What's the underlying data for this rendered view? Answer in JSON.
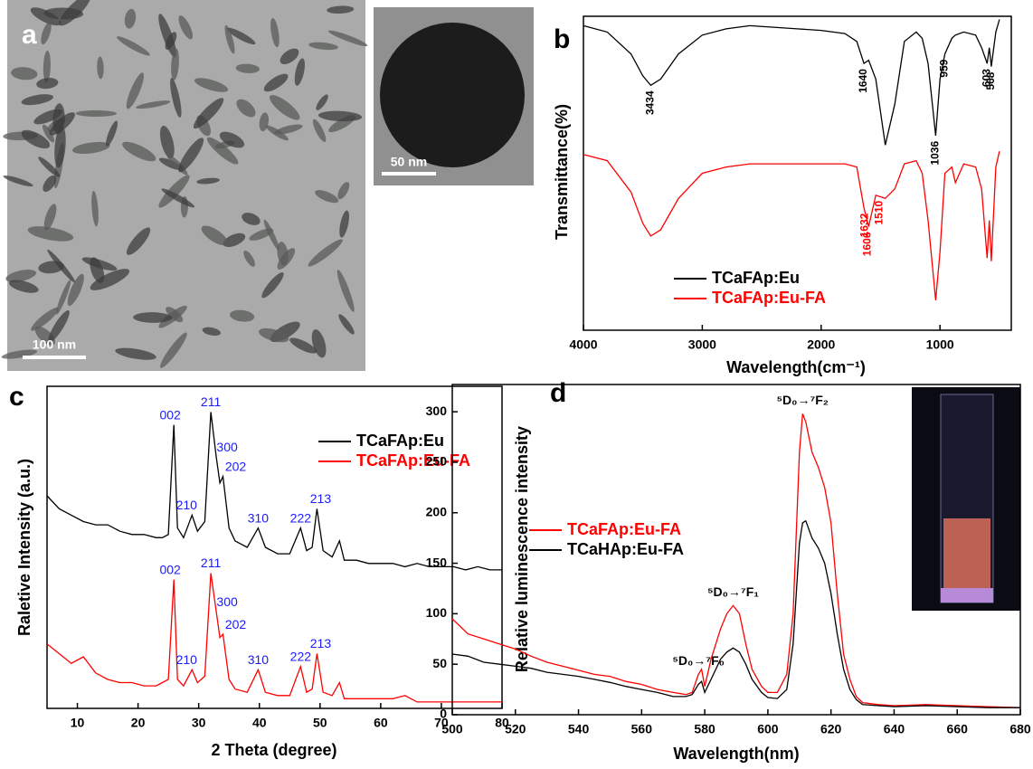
{
  "chart_data": [
    {
      "type": "image",
      "label": "a",
      "scale_bar": "100 nm",
      "inset_scale_bar": "50 nm"
    },
    {
      "type": "line",
      "label": "b",
      "x_label": "Wavelength(cm⁻¹)",
      "y_label": "Transmittance(%)",
      "xlim": [
        4000,
        400
      ],
      "xticks": [
        4000,
        3000,
        2000,
        1000
      ],
      "ylim": [
        0,
        100
      ],
      "x": [
        4000,
        3800,
        3600,
        3500,
        3434,
        3350,
        3200,
        3000,
        2800,
        2600,
        2400,
        2200,
        2000,
        1800,
        1700,
        1640,
        1600,
        1540,
        1460,
        1380,
        1300,
        1200,
        1150,
        1100,
        1036,
        1000,
        959,
        900,
        870,
        800,
        700,
        650,
        603,
        585,
        568,
        530,
        500
      ],
      "series": [
        {
          "name": "TCaFAp:Eu",
          "color": "#000000",
          "peaks": [
            3434,
            1640,
            1036,
            959,
            603,
            568
          ],
          "values": [
            97,
            95,
            88,
            81,
            78,
            80,
            88,
            94,
            96,
            97,
            96.5,
            96,
            95.5,
            94.5,
            92,
            85,
            86,
            80,
            59,
            72,
            92,
            95,
            93,
            85,
            62,
            80,
            88,
            93,
            94,
            95,
            94,
            90,
            85,
            90,
            84,
            95,
            99
          ]
        },
        {
          "name": "TCaFAp:Eu-FA",
          "color": "#ff0000",
          "peaks": [
            1632,
            1606,
            1510
          ],
          "values": [
            56,
            54,
            44,
            34,
            30,
            32,
            42,
            50,
            52,
            53,
            53,
            53,
            53,
            53,
            52,
            39,
            33,
            43,
            42,
            45,
            53,
            54,
            50,
            35,
            9.5,
            25,
            50,
            52,
            47,
            53,
            52,
            45,
            23,
            35,
            22,
            52,
            57
          ]
        }
      ]
    },
    {
      "type": "line",
      "label": "c",
      "x_label": "2 Theta (degree)",
      "y_label": "Raletive Intensity (a.u.)",
      "xlim": [
        5,
        80
      ],
      "xticks": [
        10,
        20,
        30,
        40,
        50,
        60,
        70,
        80
      ],
      "ylim": [
        0,
        100
      ],
      "x": [
        5,
        7,
        9,
        11,
        13,
        15,
        17,
        19,
        21,
        23,
        24,
        25,
        25.9,
        26.5,
        27.5,
        28.9,
        29.8,
        31,
        32,
        32.9,
        33.5,
        34,
        35,
        36,
        38,
        39.8,
        41,
        43,
        45,
        46.8,
        47.8,
        48.7,
        49.5,
        50.5,
        52,
        53.2,
        54,
        56,
        58,
        60,
        62,
        64,
        66,
        68,
        70,
        72,
        74,
        76,
        78,
        80
      ],
      "series": [
        {
          "name": "TCaFAp:Eu",
          "color": "#000000",
          "peak_labels": [
            "002",
            "210",
            "211",
            "300",
            "202",
            "310",
            "222",
            "213"
          ],
          "peak_x": [
            25.9,
            28.9,
            32,
            32.9,
            34,
            39.8,
            46.8,
            49.5
          ],
          "values": [
            66,
            62,
            60,
            58,
            57,
            57,
            55,
            54,
            54,
            53,
            53,
            54,
            88,
            56,
            53,
            60,
            55,
            58,
            92,
            78,
            70,
            72,
            56,
            52,
            50,
            56,
            50,
            48,
            48,
            56,
            49,
            50,
            62,
            49,
            47,
            52,
            46,
            46,
            45,
            45,
            45,
            44,
            45,
            44,
            44,
            44,
            43,
            44,
            43,
            43
          ]
        },
        {
          "name": "TCaFAp:Eu-FA",
          "color": "#ff0000",
          "peak_labels": [
            "002",
            "210",
            "211",
            "300",
            "202",
            "310",
            "222",
            "213"
          ],
          "peak_x": [
            25.9,
            28.9,
            32,
            32.9,
            34,
            39.8,
            46.8,
            49.5
          ],
          "values": [
            20,
            17,
            14,
            16,
            11,
            9,
            8,
            8,
            7,
            7,
            8,
            9,
            40,
            9,
            7,
            12,
            8,
            10,
            42,
            30,
            22,
            23,
            9,
            6,
            5,
            12,
            5,
            4,
            4,
            13,
            5,
            6,
            17,
            5,
            4,
            8,
            3,
            3,
            3,
            3,
            3,
            4,
            2,
            2,
            2,
            2,
            2,
            2,
            2,
            2
          ]
        }
      ]
    },
    {
      "type": "line",
      "label": "d",
      "x_label": "Wavelength(nm)",
      "y_label": "Relative luminescence intensity",
      "xlim": [
        500,
        680
      ],
      "xticks": [
        500,
        520,
        540,
        560,
        580,
        600,
        620,
        640,
        660,
        680
      ],
      "ylim": [
        0,
        327
      ],
      "yticks": [
        0,
        50,
        100,
        150,
        200,
        250,
        300
      ],
      "x": [
        500,
        505,
        510,
        515,
        520,
        525,
        530,
        535,
        540,
        545,
        550,
        555,
        560,
        565,
        570,
        574,
        576,
        578,
        579,
        580,
        582,
        585,
        587,
        589,
        591,
        593,
        595,
        598,
        600,
        603,
        606,
        608,
        610,
        611,
        612,
        614,
        616,
        618,
        620,
        622,
        624,
        626,
        628,
        630,
        635,
        640,
        650,
        660,
        670,
        680
      ],
      "annotations": [
        {
          "text": "⁵D₀→⁷F₀",
          "x": 578
        },
        {
          "text": "⁵D₀→⁷F₁",
          "x": 589
        },
        {
          "text": "⁵D₀→⁷F₂",
          "x": 611
        }
      ],
      "series": [
        {
          "name": "TCaFAp:Eu-FA",
          "color": "#ff0000",
          "values": [
            95,
            80,
            75,
            70,
            65,
            58,
            52,
            48,
            44,
            40,
            38,
            33,
            30,
            25,
            22,
            20,
            22,
            40,
            45,
            28,
            55,
            85,
            100,
            108,
            100,
            70,
            45,
            28,
            22,
            22,
            40,
            100,
            260,
            298,
            290,
            260,
            245,
            225,
            190,
            120,
            60,
            35,
            18,
            12,
            10,
            9,
            10,
            9,
            8,
            7
          ]
        },
        {
          "name": "TCaHAp:Eu-FA",
          "color": "#000000",
          "values": [
            60,
            58,
            52,
            50,
            48,
            46,
            42,
            40,
            38,
            35,
            32,
            28,
            25,
            22,
            18,
            18,
            20,
            30,
            33,
            22,
            35,
            55,
            62,
            66,
            62,
            50,
            35,
            22,
            17,
            16,
            25,
            70,
            170,
            190,
            192,
            175,
            165,
            150,
            120,
            80,
            45,
            25,
            15,
            10,
            9,
            8,
            9,
            8,
            7,
            7
          ]
        }
      ]
    }
  ]
}
